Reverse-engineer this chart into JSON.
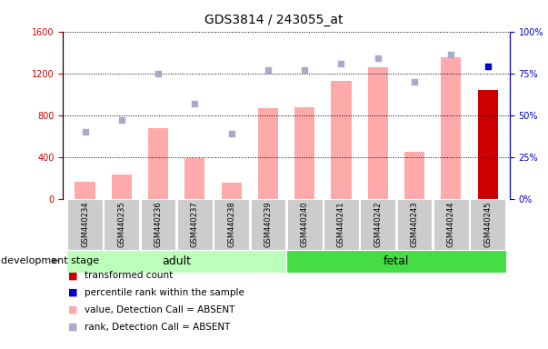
{
  "title": "GDS3814 / 243055_at",
  "samples": [
    "GSM440234",
    "GSM440235",
    "GSM440236",
    "GSM440237",
    "GSM440238",
    "GSM440239",
    "GSM440240",
    "GSM440241",
    "GSM440242",
    "GSM440243",
    "GSM440244",
    "GSM440245"
  ],
  "bar_values": [
    160,
    230,
    680,
    390,
    155,
    870,
    880,
    1130,
    1260,
    450,
    1350,
    1040
  ],
  "bar_colors": [
    "#ffaaaa",
    "#ffaaaa",
    "#ffaaaa",
    "#ffaaaa",
    "#ffaaaa",
    "#ffaaaa",
    "#ffaaaa",
    "#ffaaaa",
    "#ffaaaa",
    "#ffaaaa",
    "#ffaaaa",
    "#cc0000"
  ],
  "scatter_rank_pct": [
    40,
    47,
    75,
    57,
    39,
    77,
    77,
    81,
    84,
    70,
    86,
    79
  ],
  "scatter_rank_last_color": "#0000cc",
  "scatter_rank_other_color": "#aaaacc",
  "ylim_left": [
    0,
    1600
  ],
  "ylim_right": [
    0,
    100
  ],
  "yticks_left": [
    0,
    400,
    800,
    1200,
    1600
  ],
  "yticks_right": [
    0,
    25,
    50,
    75,
    100
  ],
  "adult_count": 6,
  "fetal_count": 6,
  "adult_color": "#bbffbb",
  "fetal_color": "#44dd44",
  "left_axis_color": "#cc0000",
  "right_axis_color": "#0000cc",
  "tick_label_bg": "#cccccc",
  "title_fontsize": 10,
  "tick_fontsize": 7,
  "label_fontsize": 6,
  "legend_fontsize": 7.5,
  "group_fontsize": 9,
  "dev_stage_fontsize": 8,
  "legend_items": [
    {
      "label": "transformed count",
      "color": "#cc0000"
    },
    {
      "label": "percentile rank within the sample",
      "color": "#0000cc"
    },
    {
      "label": "value, Detection Call = ABSENT",
      "color": "#ffaaaa"
    },
    {
      "label": "rank, Detection Call = ABSENT",
      "color": "#aaaacc"
    }
  ]
}
